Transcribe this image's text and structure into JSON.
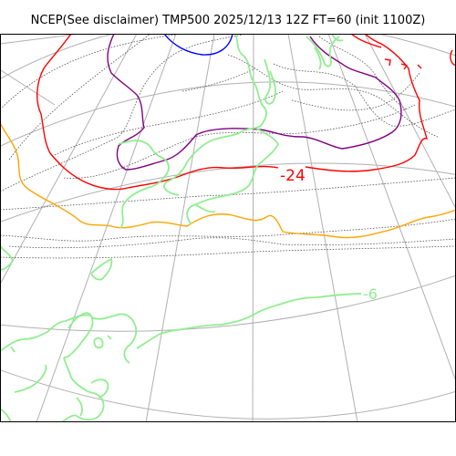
{
  "title": "NCEP(See disclaimer) TMP500 2025/12/13 12Z FT=60 (init 1100Z)",
  "contours": {
    "label_cold": "-24",
    "label_warm": "-6"
  },
  "colors": {
    "graticule": "#b0b0b0",
    "coastline": "#90ee90",
    "isotherm_minus24": "#ff0000",
    "isotherm_purple": "#800080",
    "isotherm_blue": "#0000ff",
    "isotherm_orange": "#ffa500",
    "isotherm_minor": "#555555",
    "frame": "#000000"
  }
}
